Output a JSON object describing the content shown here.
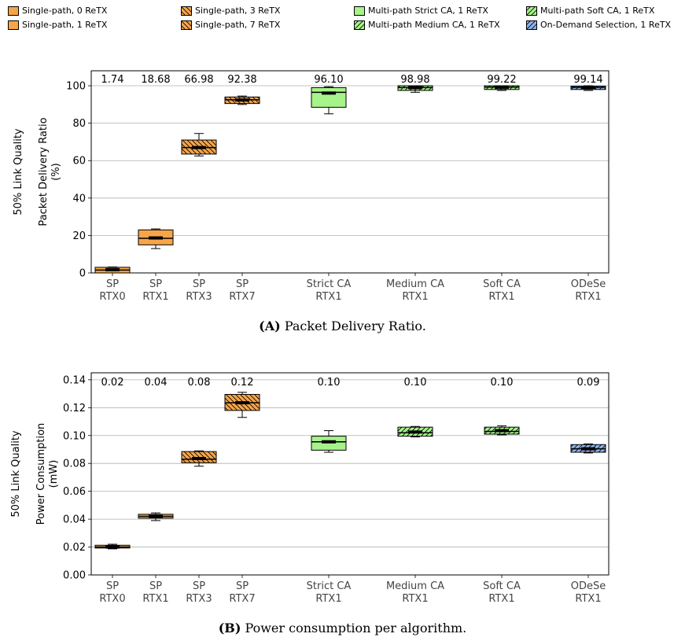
{
  "legend": [
    {
      "label": "Single-path, 0 ReTX",
      "color": "#f6a54a",
      "hatch": "none"
    },
    {
      "label": "Single-path, 1 ReTX",
      "color": "#f6a54a",
      "hatch": "none"
    },
    {
      "label": "Single-path, 3 ReTX",
      "color": "#f6a54a",
      "hatch": "back"
    },
    {
      "label": "Single-path, 7 ReTX",
      "color": "#f6a54a",
      "hatch": "back"
    },
    {
      "label": "Multi-path Strict CA, 1 ReTX",
      "color": "#a6f38a",
      "hatch": "none"
    },
    {
      "label": "Multi-path Medium CA, 1 ReTX",
      "color": "#a6f38a",
      "hatch": "fwd"
    },
    {
      "label": "Multi-path Soft CA, 1 ReTX",
      "color": "#a6f38a",
      "hatch": "fwd"
    },
    {
      "label": "On-Demand Selection, 1 ReTX",
      "color": "#8fb3ec",
      "hatch": "fwd"
    }
  ],
  "chart_data": [
    {
      "type": "box",
      "caption_tag": "(A)",
      "caption_text": "Packet Delivery Ratio.",
      "row_label": "50% Link Quality",
      "ylabel_line1": "Packet Delivery Ratio",
      "ylabel_line2": "(%)",
      "ylim": [
        0,
        108
      ],
      "yticks": [
        "0",
        "20",
        "40",
        "60",
        "80",
        "100"
      ],
      "ytick_values": [
        0,
        20,
        40,
        60,
        80,
        100
      ],
      "grid": true,
      "categories": [
        {
          "line1": "SP",
          "line2": "RTX0"
        },
        {
          "line1": "SP",
          "line2": "RTX1"
        },
        {
          "line1": "SP",
          "line2": "RTX3"
        },
        {
          "line1": "SP",
          "line2": "RTX7"
        },
        {
          "line1": "Strict CA",
          "line2": "RTX1"
        },
        {
          "line1": "Medium CA",
          "line2": "RTX1"
        },
        {
          "line1": "Soft CA",
          "line2": "RTX1"
        },
        {
          "line1": "ODeSe",
          "line2": "RTX1"
        }
      ],
      "annotations": [
        "1.74",
        "18.68",
        "66.98",
        "92.38",
        "96.10",
        "98.98",
        "99.22",
        "99.14"
      ],
      "boxes": [
        {
          "min": 0,
          "q1": 0,
          "median": 1.5,
          "q3": 3,
          "max": 3.2,
          "mean": 1.74
        },
        {
          "min": 13,
          "q1": 15,
          "median": 18.5,
          "q3": 23,
          "max": 23.5,
          "mean": 18.68
        },
        {
          "min": 62.5,
          "q1": 63.5,
          "median": 67,
          "q3": 71,
          "max": 74.5,
          "mean": 66.98
        },
        {
          "min": 90,
          "q1": 90.5,
          "median": 92.5,
          "q3": 94,
          "max": 94.5,
          "mean": 92.38
        },
        {
          "min": 85,
          "q1": 88.5,
          "median": 96.5,
          "q3": 99,
          "max": 99.5,
          "mean": 96.1
        },
        {
          "min": 96.5,
          "q1": 97.5,
          "median": 99,
          "q3": 100,
          "max": 100,
          "mean": 98.98
        },
        {
          "min": 97.5,
          "q1": 98,
          "median": 99.3,
          "q3": 100,
          "max": 100,
          "mean": 99.22
        },
        {
          "min": 97.5,
          "q1": 98,
          "median": 99.1,
          "q3": 99.8,
          "max": 100,
          "mean": 99.14
        }
      ]
    },
    {
      "type": "box",
      "caption_tag": "(B)",
      "caption_text": "Power consumption per algorithm.",
      "row_label": "50% Link Quality",
      "ylabel_line1": "Power Consumption",
      "ylabel_line2": "(mW)",
      "ylim": [
        0,
        0.145
      ],
      "yticks": [
        "0.00",
        "0.02",
        "0.04",
        "0.06",
        "0.08",
        "0.10",
        "0.12",
        "0.14"
      ],
      "ytick_values": [
        0,
        0.02,
        0.04,
        0.06,
        0.08,
        0.1,
        0.12,
        0.14
      ],
      "grid": true,
      "categories": [
        {
          "line1": "SP",
          "line2": "RTX0"
        },
        {
          "line1": "SP",
          "line2": "RTX1"
        },
        {
          "line1": "SP",
          "line2": "RTX3"
        },
        {
          "line1": "SP",
          "line2": "RTX7"
        },
        {
          "line1": "Strict CA",
          "line2": "RTX1"
        },
        {
          "line1": "Medium CA",
          "line2": "RTX1"
        },
        {
          "line1": "Soft CA",
          "line2": "RTX1"
        },
        {
          "line1": "ODeSe",
          "line2": "RTX1"
        }
      ],
      "annotations": [
        "0.02",
        "0.04",
        "0.08",
        "0.12",
        "0.10",
        "0.10",
        "0.10",
        "0.09"
      ],
      "boxes": [
        {
          "min": 0.0187,
          "q1": 0.0193,
          "median": 0.02,
          "q3": 0.0213,
          "max": 0.022,
          "mean": 0.02
        },
        {
          "min": 0.039,
          "q1": 0.0407,
          "median": 0.042,
          "q3": 0.0435,
          "max": 0.0445,
          "mean": 0.042
        },
        {
          "min": 0.078,
          "q1": 0.0805,
          "median": 0.083,
          "q3": 0.0885,
          "max": 0.089,
          "mean": 0.0835
        },
        {
          "min": 0.113,
          "q1": 0.118,
          "median": 0.1235,
          "q3": 0.1295,
          "max": 0.131,
          "mean": 0.1235
        },
        {
          "min": 0.088,
          "q1": 0.0895,
          "median": 0.0955,
          "q3": 0.0995,
          "max": 0.1035,
          "mean": 0.0955
        },
        {
          "min": 0.099,
          "q1": 0.0995,
          "median": 0.102,
          "q3": 0.106,
          "max": 0.1065,
          "mean": 0.1025
        },
        {
          "min": 0.1005,
          "q1": 0.101,
          "median": 0.103,
          "q3": 0.106,
          "max": 0.107,
          "mean": 0.1035
        },
        {
          "min": 0.0875,
          "q1": 0.088,
          "median": 0.0905,
          "q3": 0.0935,
          "max": 0.094,
          "mean": 0.0905
        }
      ]
    }
  ]
}
